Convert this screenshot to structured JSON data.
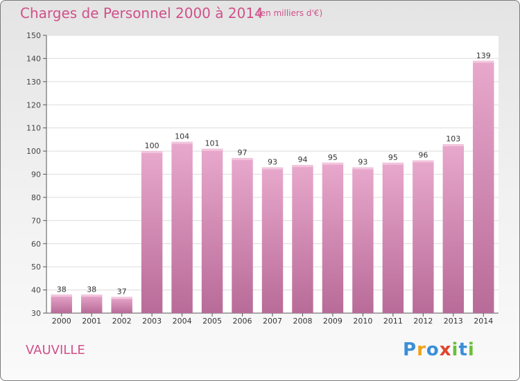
{
  "chart_data": {
    "type": "bar",
    "title": "Charges de Personnel 2000 à 2014",
    "subtitle": "(en milliers d'€)",
    "categories": [
      "2000",
      "2001",
      "2002",
      "2003",
      "2004",
      "2005",
      "2006",
      "2007",
      "2008",
      "2009",
      "2010",
      "2011",
      "2012",
      "2013",
      "2014"
    ],
    "values": [
      38,
      38,
      37,
      100,
      104,
      101,
      97,
      93,
      94,
      95,
      93,
      95,
      96,
      103,
      139
    ],
    "ylim": [
      30,
      150
    ],
    "yticks": [
      30,
      40,
      50,
      60,
      70,
      80,
      90,
      100,
      110,
      120,
      130,
      140,
      150
    ],
    "xlabel": "",
    "ylabel": "",
    "grid": true,
    "bar_color": "#d98ab3"
  },
  "footer": {
    "location": "VAUVILLE",
    "logo": "Proxiti"
  },
  "colors": {
    "title": "#d0508a",
    "grid": "#dcdcdc",
    "axis": "#555555"
  }
}
